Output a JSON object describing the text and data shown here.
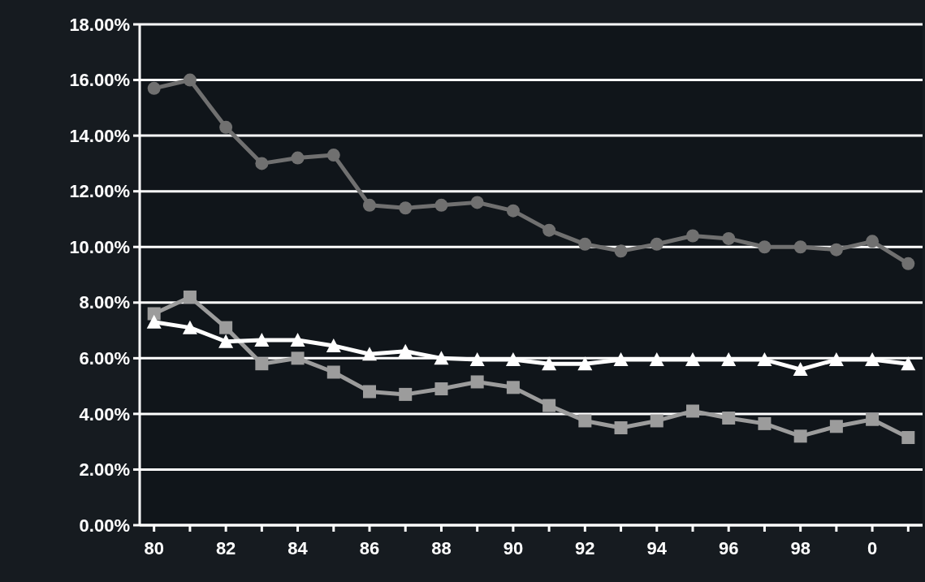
{
  "chart_data": {
    "type": "line",
    "categories": [
      "80",
      null,
      "82",
      null,
      "84",
      null,
      "86",
      null,
      "88",
      null,
      "90",
      null,
      "92",
      null,
      "94",
      null,
      "96",
      null,
      "98",
      null,
      "0",
      null
    ],
    "series": [
      {
        "color": "#707070",
        "marker": "circle",
        "values": [
          15.7,
          16.0,
          14.3,
          13.0,
          13.2,
          13.3,
          11.5,
          11.4,
          11.5,
          11.6,
          11.3,
          10.6,
          10.1,
          9.85,
          10.1,
          10.4,
          10.3,
          10.0,
          10.0,
          9.9,
          10.2,
          9.4
        ]
      },
      {
        "color": "#9c9c9c",
        "marker": "square",
        "values": [
          7.6,
          8.2,
          7.1,
          5.8,
          6.0,
          5.5,
          4.8,
          4.7,
          4.9,
          5.15,
          4.95,
          4.3,
          3.75,
          3.5,
          3.75,
          4.1,
          3.85,
          3.65,
          3.2,
          3.55,
          3.8,
          3.15
        ]
      },
      {
        "color": "#ffffff",
        "marker": "triangle",
        "values": [
          7.3,
          7.1,
          6.6,
          6.65,
          6.65,
          6.45,
          6.15,
          6.25,
          6.0,
          5.95,
          5.95,
          5.8,
          5.8,
          5.95,
          5.95,
          5.95,
          5.95,
          5.95,
          5.6,
          5.95,
          5.95,
          5.8
        ]
      }
    ],
    "ylim": [
      0,
      18
    ],
    "yticks": [
      {
        "value": 0,
        "label": "0.00%"
      },
      {
        "value": 2,
        "label": "2.00%"
      },
      {
        "value": 4,
        "label": "4.00%"
      },
      {
        "value": 6,
        "label": "6.00%"
      },
      {
        "value": 8,
        "label": "8.00%"
      },
      {
        "value": 10,
        "label": "10.00%"
      },
      {
        "value": 12,
        "label": "12.00%"
      },
      {
        "value": 14,
        "label": "14.00%"
      },
      {
        "value": 16,
        "label": "16.00%"
      },
      {
        "value": 18,
        "label": "18.00%"
      }
    ],
    "grid": "y",
    "line_style": "solid"
  }
}
